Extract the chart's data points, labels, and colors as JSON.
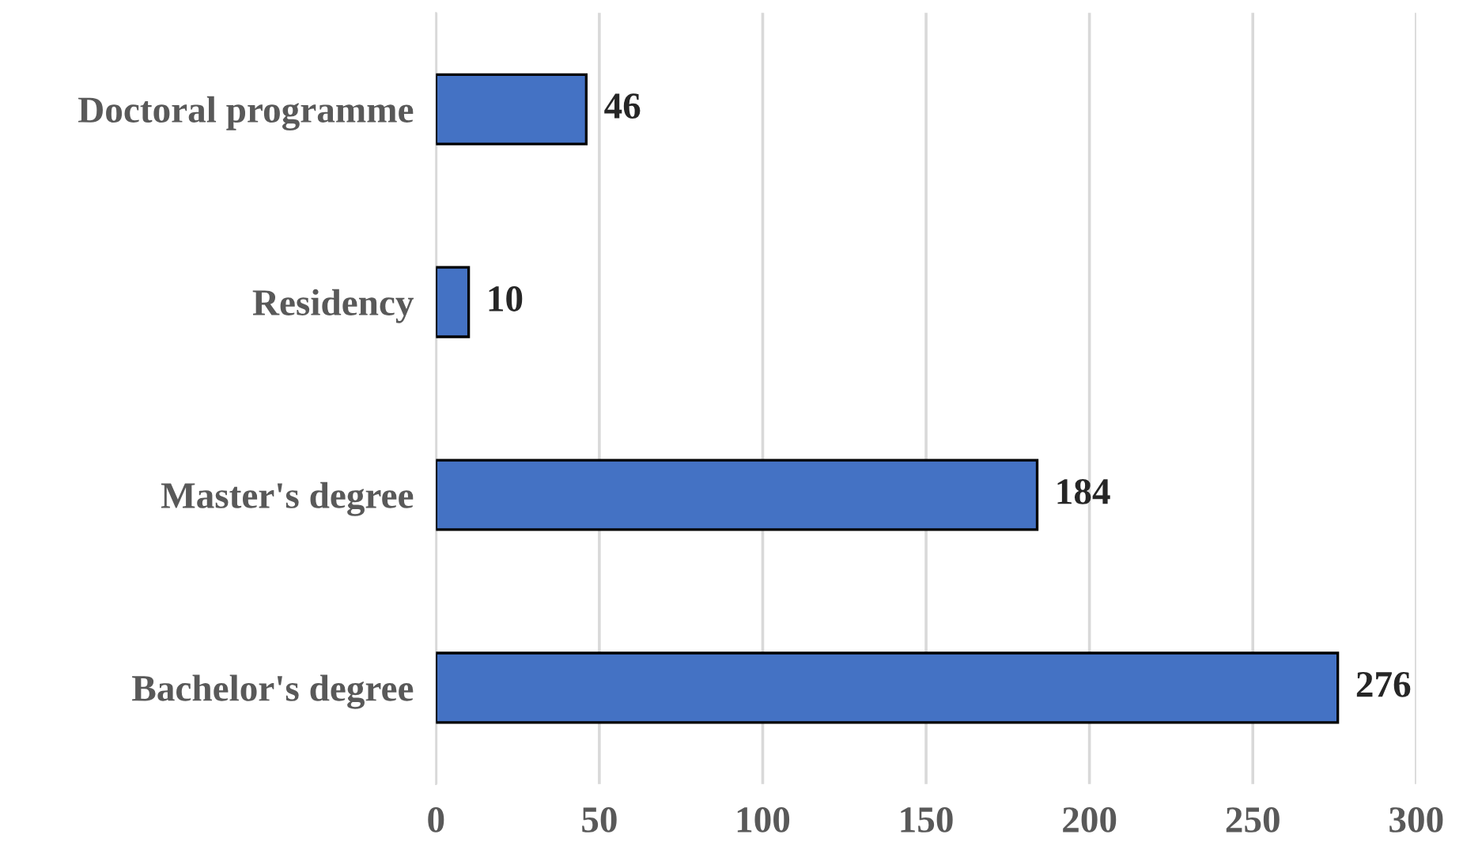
{
  "chart_data": {
    "type": "bar",
    "orientation": "horizontal",
    "categories": [
      "Doctoral programme",
      "Residency",
      "Master's degree",
      "Bachelor's degree"
    ],
    "values": [
      46,
      10,
      184,
      276
    ],
    "color": "#4472c4",
    "xlim": [
      0,
      300
    ],
    "xticks": [
      0,
      50,
      100,
      150,
      200,
      250,
      300
    ],
    "grid": "x",
    "data_labels": true
  }
}
